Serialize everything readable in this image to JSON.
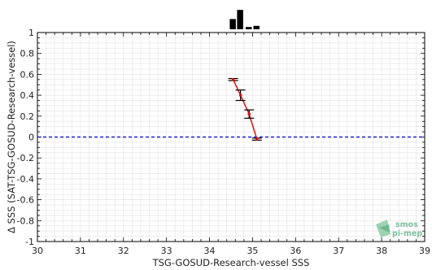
{
  "chart_data": {
    "type": "line",
    "xlabel": "TSG-GOSUD-Research-vessel SSS",
    "ylabel": "Δ SSS (SAT-TSG-GOSUD-Research-vessel)",
    "xlim": [
      30,
      39
    ],
    "ylim": [
      -1,
      1
    ],
    "x_ticks": [
      "30",
      "31",
      "32",
      "33",
      "34",
      "35",
      "36",
      "37",
      "38",
      "39"
    ],
    "y_ticks": [
      "-1",
      "-0.8",
      "-0.6",
      "-0.4",
      "-0.2",
      "0",
      "0.2",
      "0.4",
      "0.6",
      "0.8",
      "1"
    ],
    "grid": true,
    "reference_line": {
      "y": 0,
      "style": "dashed",
      "color": "#1f1fd0"
    },
    "series": [
      {
        "color": "#e01010",
        "points": [
          {
            "x": 34.55,
            "y": 0.55,
            "err": 0.01
          },
          {
            "x": 34.72,
            "y": 0.4,
            "err": 0.05
          },
          {
            "x": 34.92,
            "y": 0.22,
            "err": 0.04
          },
          {
            "x": 35.1,
            "y": -0.02,
            "err": 0.01
          }
        ]
      }
    ],
    "histogram": {
      "bin_centers": [
        34.55,
        34.72,
        34.92,
        35.1
      ],
      "relative_heights": [
        0.45,
        0.85,
        0.1,
        0.15
      ],
      "color": "#000000"
    },
    "logo": {
      "line1": "smos",
      "line2": "pi-mep"
    }
  }
}
